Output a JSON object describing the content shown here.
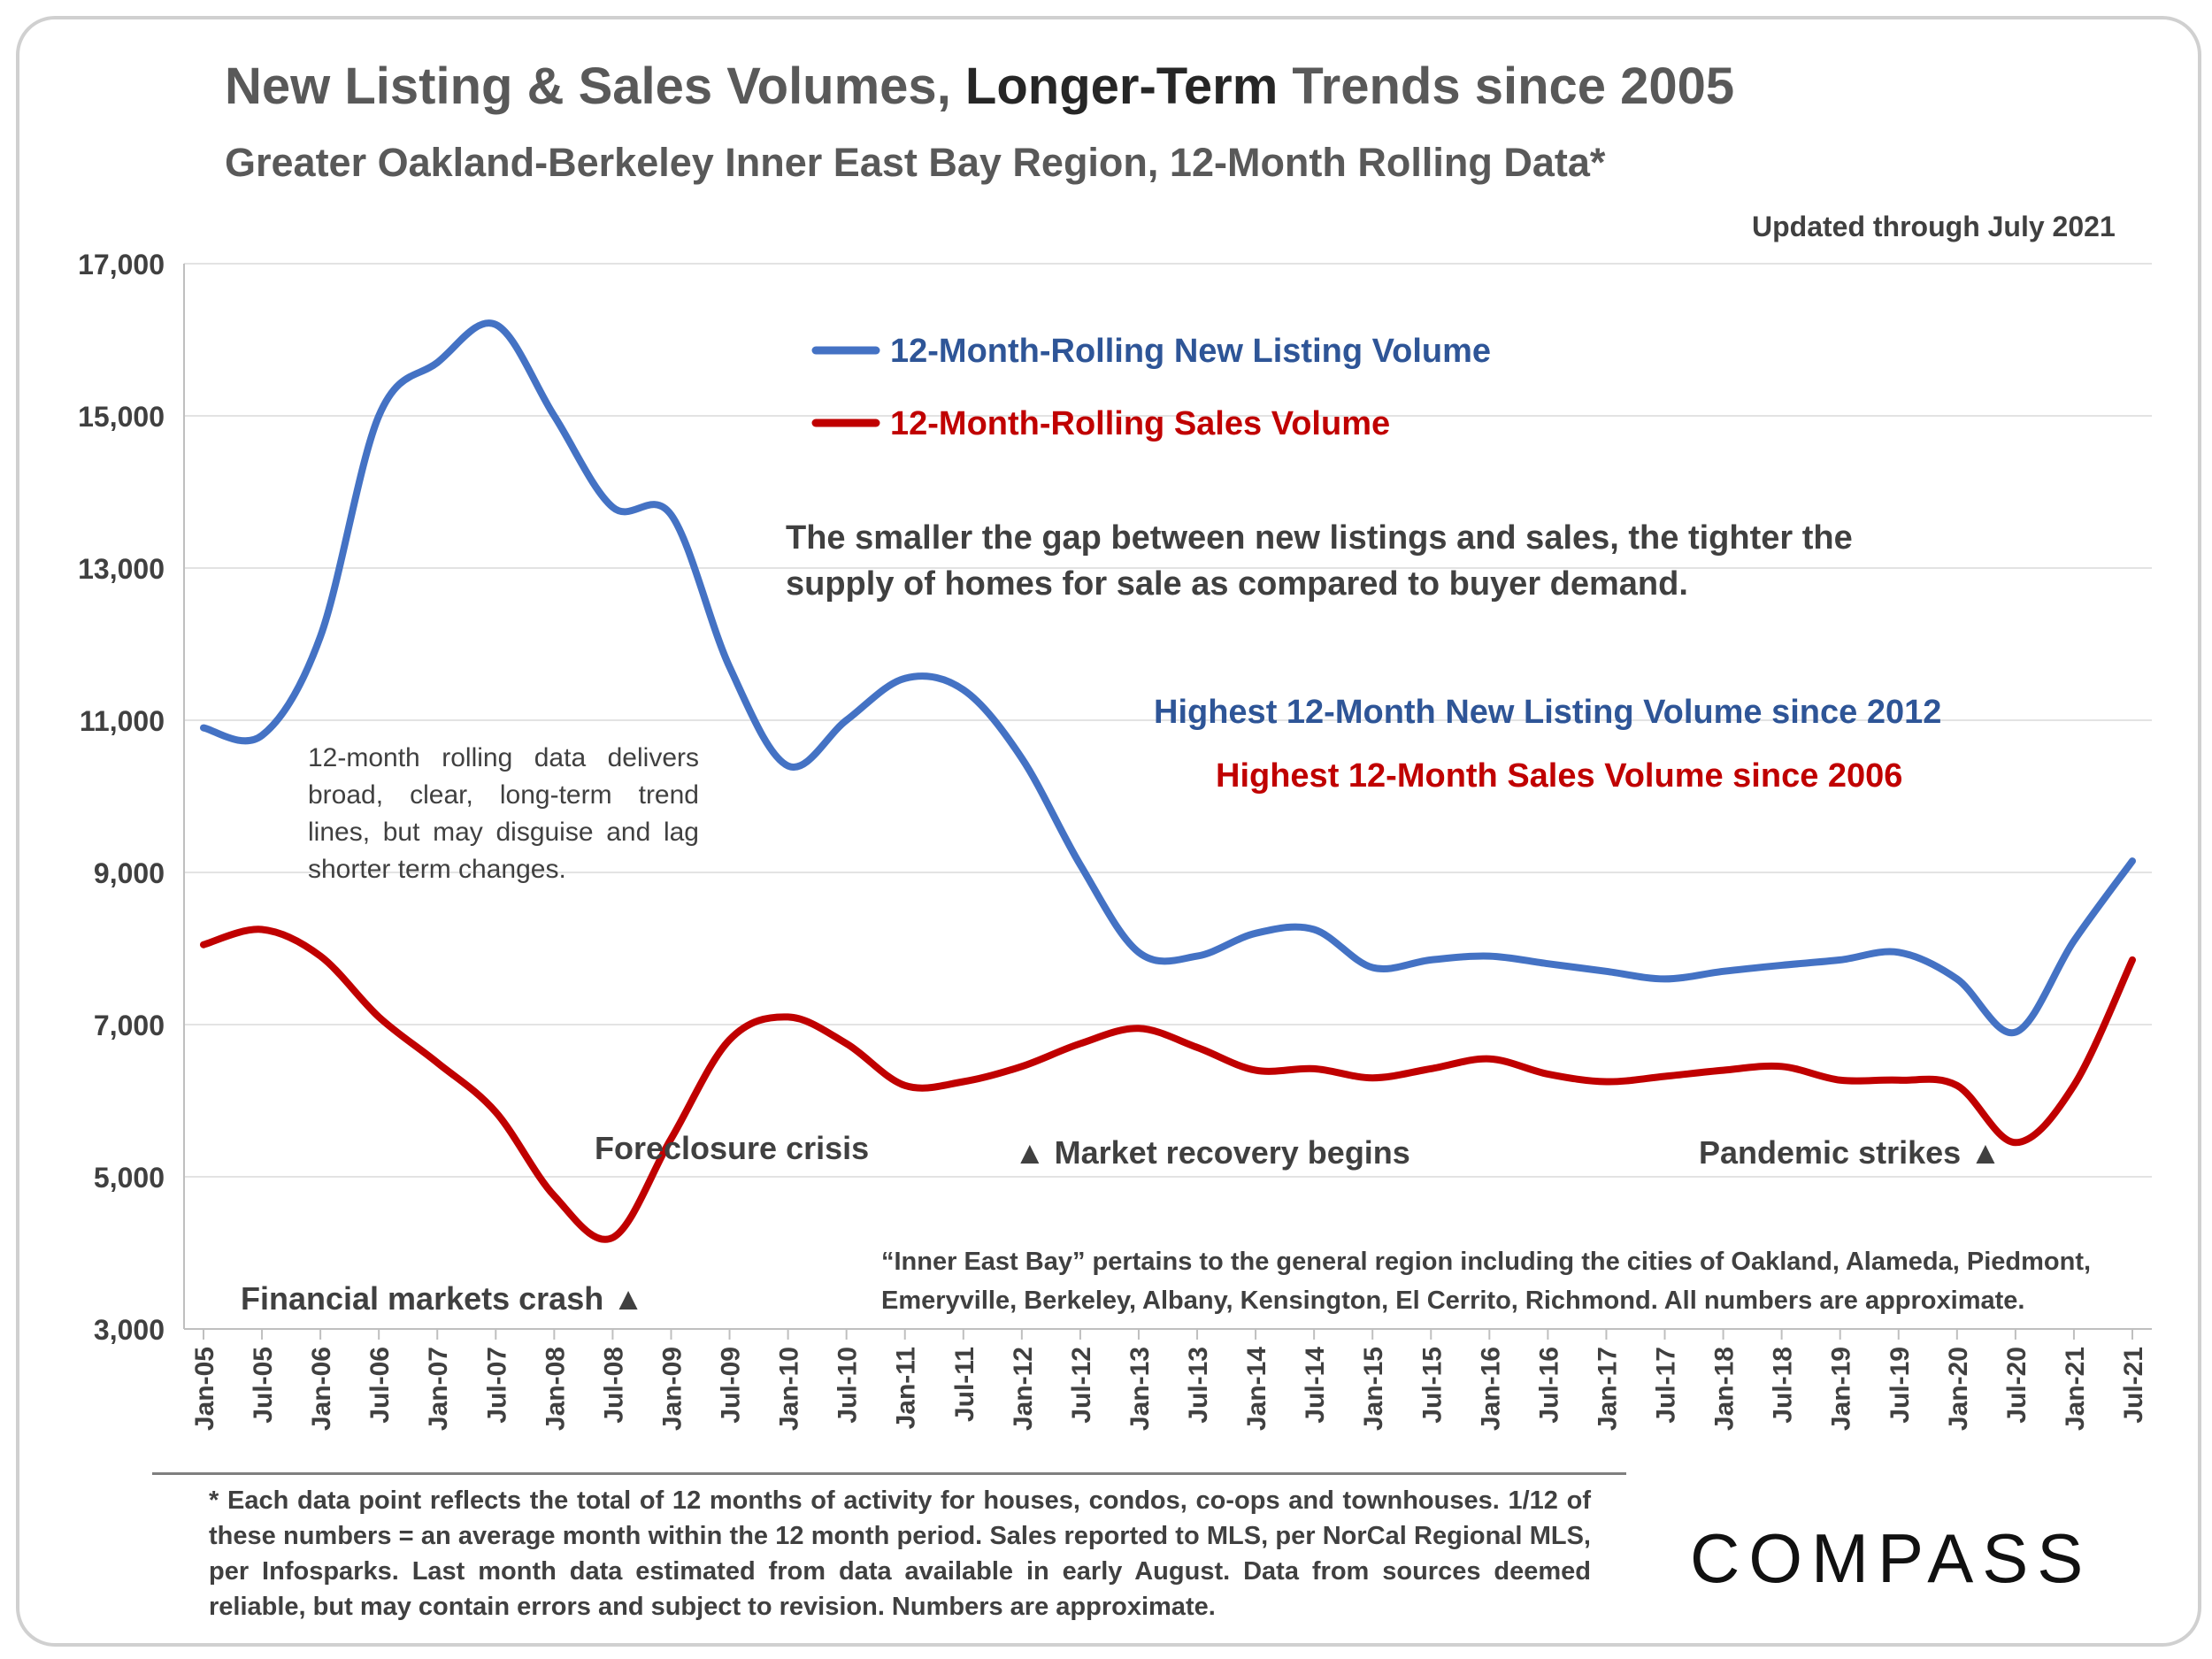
{
  "title": {
    "part1": "New Listing & Sales Volumes, ",
    "part2": "Longer-Term",
    "part3": " Trends since 2005"
  },
  "subtitle": "Greater Oakland-Berkeley Inner East Bay Region, 12-Month Rolling Data*",
  "updated": "Updated through July 2021",
  "notes": {
    "left": "12-month rolling data delivers broad, clear, long-term trend lines, but may disguise and lag shorter term changes.",
    "gap": "The smaller the gap between new listings and sales, the tighter the supply of homes for sale as compared to buyer demand.",
    "highest_listing": "Highest 12-Month New Listing Volume since 2012",
    "highest_sales": "Highest 12-Month Sales Volume since 2006",
    "region": "“Inner East Bay” pertains to the general region including the cities of Oakland, Alameda, Piedmont, Emeryville, Berkeley, Albany, Kensington, El Cerrito, Richmond. All numbers are approximate."
  },
  "annotations": {
    "crisis": "Foreclosure crisis",
    "recovery": "▲  Market recovery begins",
    "pandemic": "Pandemic strikes ▲",
    "crash": "Financial markets crash ▲"
  },
  "footnote": "* Each data point reflects the total of 12 months of activity for houses, condos, co-ops and townhouses. 1/12 of these numbers = an average month within the 12 month period. Sales reported to MLS, per NorCal Regional MLS, per Infosparks. Last month data estimated from data available in early August. Data from sources deemed reliable, but may contain errors and subject to revision. Numbers are approximate.",
  "logo": "COMPASS",
  "chart_data": {
    "type": "line",
    "title": "New Listing & Sales Volumes, Longer-Term Trends since 2005",
    "xlabel": "",
    "ylabel": "",
    "ylim": [
      3000,
      17000
    ],
    "yticks": [
      3000,
      5000,
      7000,
      9000,
      11000,
      13000,
      15000,
      17000
    ],
    "yticklabels": [
      "3,000",
      "5,000",
      "7,000",
      "9,000",
      "11,000",
      "13,000",
      "15,000",
      "17,000"
    ],
    "grid": true,
    "legend_position": "top-center",
    "x": [
      "Jan-05",
      "Jul-05",
      "Jan-06",
      "Jul-06",
      "Jan-07",
      "Jul-07",
      "Jan-08",
      "Jul-08",
      "Jan-09",
      "Jul-09",
      "Jan-10",
      "Jul-10",
      "Jan-11",
      "Jul-11",
      "Jan-12",
      "Jul-12",
      "Jan-13",
      "Jul-13",
      "Jan-14",
      "Jul-14",
      "Jan-15",
      "Jul-15",
      "Jan-16",
      "Jul-16",
      "Jan-17",
      "Jul-17",
      "Jan-18",
      "Jul-18",
      "Jan-19",
      "Jul-19",
      "Jan-20",
      "Jul-20",
      "Jan-21",
      "Jul-21"
    ],
    "series": [
      {
        "name": "12-Month-Rolling New Listing Volume",
        "color": "#4472c4",
        "values": [
          10900,
          10800,
          12100,
          15000,
          15700,
          16200,
          15000,
          13800,
          13700,
          11700,
          10400,
          11000,
          11550,
          11400,
          10500,
          9100,
          7950,
          7900,
          8200,
          8250,
          7750,
          7850,
          7900,
          7800,
          7700,
          7600,
          7700,
          7780,
          7850,
          7950,
          7600,
          6900,
          8100,
          9150
        ]
      },
      {
        "name": "12-Month-Rolling Sales Volume",
        "color": "#c00000",
        "values": [
          8050,
          8250,
          7900,
          7100,
          6500,
          5850,
          4750,
          4200,
          5500,
          6800,
          7100,
          6750,
          6200,
          6250,
          6450,
          6750,
          6950,
          6700,
          6400,
          6420,
          6300,
          6420,
          6550,
          6350,
          6250,
          6320,
          6400,
          6450,
          6270,
          6270,
          6200,
          5450,
          6200,
          7850
        ]
      }
    ]
  }
}
